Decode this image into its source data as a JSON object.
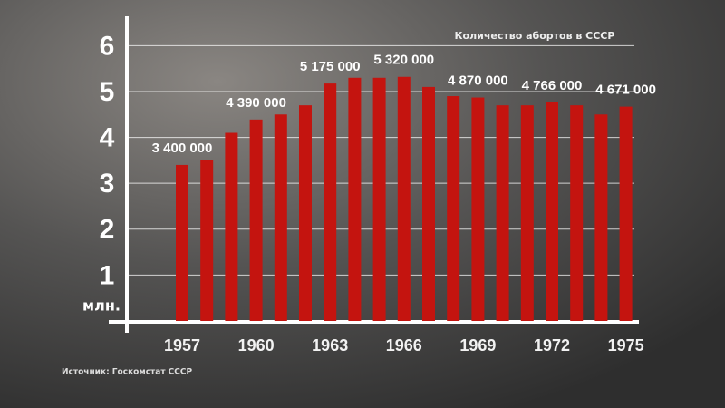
{
  "chart_data": {
    "type": "bar",
    "title": "Количество абортов в СССР",
    "ylabel": "млн.",
    "source": "Источник: Госкомстат СССР",
    "categories": [
      "1957",
      null,
      null,
      "1960",
      null,
      null,
      "1963",
      null,
      null,
      "1966",
      null,
      null,
      "1969",
      null,
      null,
      "1972",
      null,
      null,
      "1975"
    ],
    "values": [
      3.4,
      3.5,
      4.1,
      4.39,
      4.5,
      4.7,
      5.175,
      5.3,
      5.3,
      5.32,
      5.1,
      4.9,
      4.87,
      4.7,
      4.7,
      4.766,
      4.7,
      4.5,
      4.671
    ],
    "value_labels": [
      "3 400 000",
      null,
      null,
      "4 390 000",
      null,
      null,
      "5 175 000",
      null,
      null,
      "5 320 000",
      null,
      null,
      "4 870 000",
      null,
      null,
      "4 766 000",
      null,
      null,
      "4 671 000"
    ],
    "color": "#c4140f",
    "ylim": [
      0,
      6.6
    ],
    "yticks": [
      1,
      2,
      3,
      4,
      5,
      6
    ],
    "grid": true
  }
}
